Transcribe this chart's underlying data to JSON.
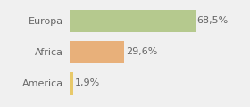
{
  "categories": [
    "America",
    "Africa",
    "Europa"
  ],
  "values": [
    1.9,
    29.6,
    68.5
  ],
  "labels": [
    "1,9%",
    "29,6%",
    "68,5%"
  ],
  "bar_colors": [
    "#e8c96a",
    "#e8b07a",
    "#b5c98e"
  ],
  "background_color": "#f0f0f0",
  "xlim": [
    0,
    82
  ],
  "label_fontsize": 8,
  "category_fontsize": 8,
  "figsize": [
    2.8,
    1.2
  ],
  "dpi": 100
}
